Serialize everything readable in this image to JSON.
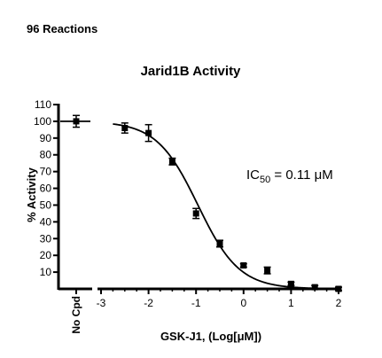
{
  "header": "96 Reactions",
  "annotation": "IC50 = 0.11 μM",
  "annotation_parts": {
    "pre": "IC",
    "sub": "50",
    "post": " = 0.11 μM"
  },
  "chart_data": {
    "type": "scatter",
    "title": "Jarid1B Activity",
    "xlabel": "GSK-J1, (Log[μM])",
    "ylabel": "% Activity",
    "xlim": [
      -3,
      2
    ],
    "ylim": [
      0,
      110
    ],
    "x_ticks": [
      -3,
      -2,
      -1,
      0,
      1,
      2
    ],
    "y_ticks": [
      10,
      20,
      30,
      40,
      50,
      60,
      70,
      80,
      90,
      100,
      110
    ],
    "grid": false,
    "control": {
      "label": "No Cpd",
      "value": 100,
      "error": 3.5
    },
    "series": [
      {
        "points": [
          {
            "x": -2.5,
            "y": 96,
            "err": 3
          },
          {
            "x": -2.0,
            "y": 93,
            "err": 5
          },
          {
            "x": -1.5,
            "y": 76,
            "err": 2
          },
          {
            "x": -1.0,
            "y": 45,
            "err": 3
          },
          {
            "x": -0.5,
            "y": 27,
            "err": 2
          },
          {
            "x": 0.0,
            "y": 14,
            "err": 1
          },
          {
            "x": 0.5,
            "y": 11,
            "err": 2
          },
          {
            "x": 1.0,
            "y": 3,
            "err": 1
          },
          {
            "x": 1.5,
            "y": 1,
            "err": 1
          },
          {
            "x": 2.0,
            "y": 0,
            "err": 1
          }
        ],
        "fit": {
          "type": "sigmoidal",
          "top": 100,
          "bottom": 0,
          "log_ic50": -0.96,
          "hill_slope": -1
        }
      }
    ]
  }
}
